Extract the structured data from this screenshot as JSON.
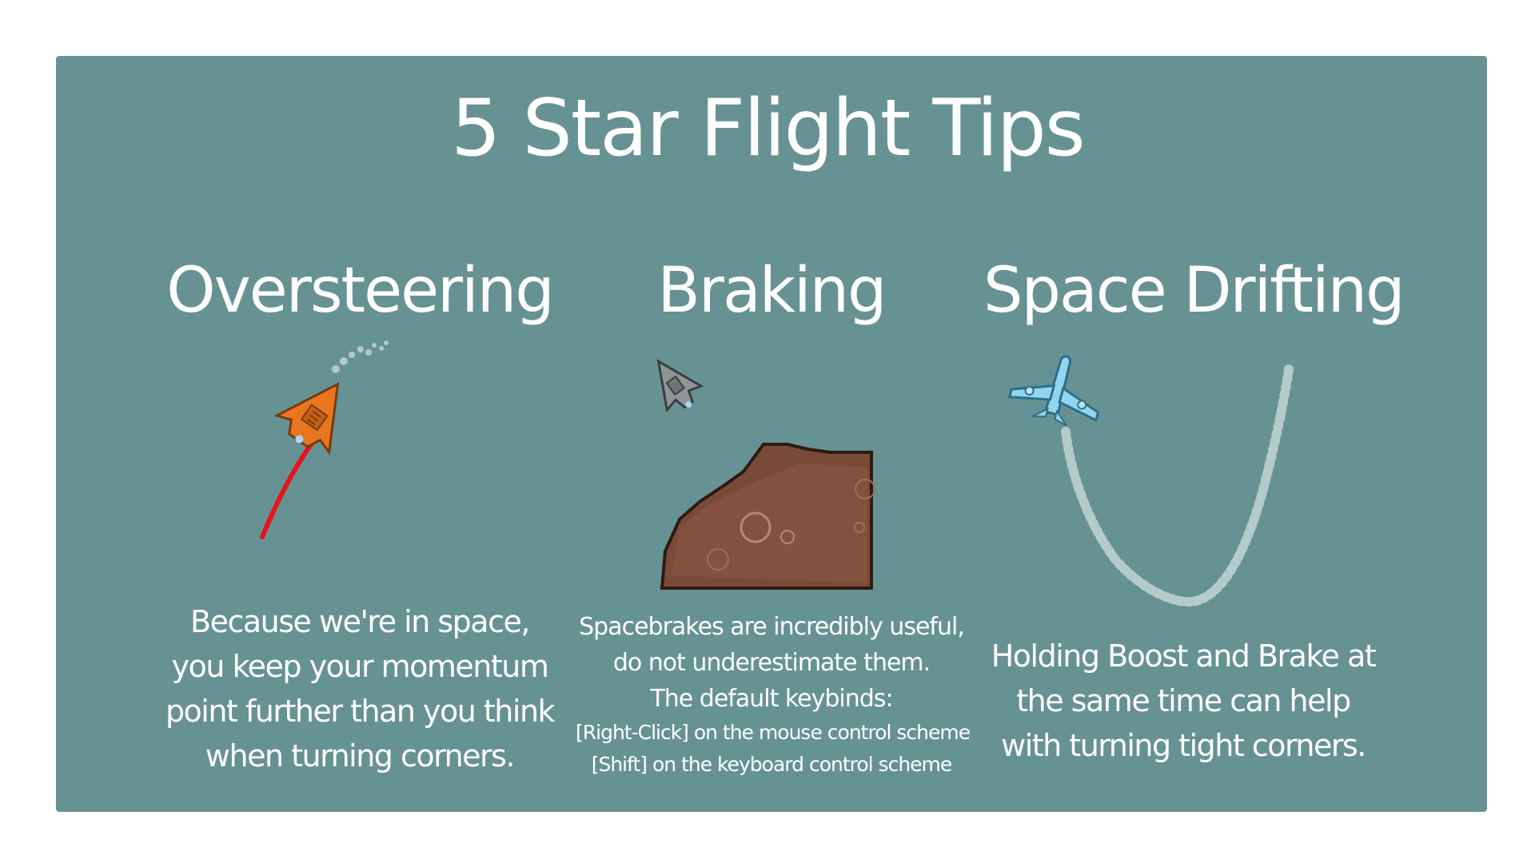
{
  "title": "5 Star Flight Tips",
  "tips": [
    {
      "heading": "Oversteering",
      "lines": [
        "Because we're in space,",
        "you keep your momentum",
        "point further than you think",
        "when turning corners."
      ]
    },
    {
      "heading": "Braking",
      "lines": [
        "Spacebrakes are incredibly useful,",
        "do not underestimate them.",
        "The default keybinds:"
      ],
      "keybinds": [
        "[Right-Click] on the mouse control scheme",
        "[Shift] on the keyboard control scheme"
      ]
    },
    {
      "heading": "Space Drifting",
      "lines": [
        "Holding Boost and Brake at",
        "the same time can help",
        "with turning tight corners."
      ]
    }
  ],
  "icons": [
    "orange-spaceship-icon",
    "gray-spaceship-icon",
    "asteroid-icon",
    "blue-spaceship-icon"
  ],
  "colors": {
    "panel": "#679294",
    "text": "#ffffff",
    "path_red": "#e8141c",
    "ship_orange": "#e8761e",
    "ship_gray": "#8e9597",
    "ship_blue": "#8fd6ee",
    "asteroid": "#7a4a38"
  }
}
